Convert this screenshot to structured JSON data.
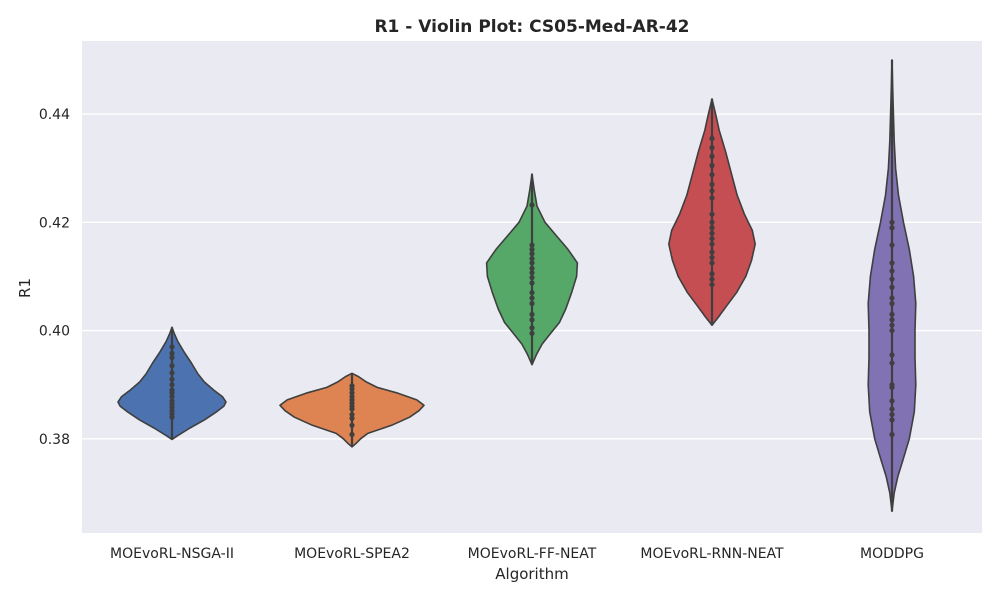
{
  "chart_data": {
    "type": "violin",
    "title": "R1 - Violin Plot: CS05-Med-AR-42",
    "xlabel": "Algorithm",
    "ylabel": "R1",
    "ylim": [
      0.3626,
      0.4535
    ],
    "yticks": [
      0.38,
      0.4,
      0.42,
      0.44
    ],
    "ytick_labels": [
      "0.38",
      "0.40",
      "0.42",
      "0.44"
    ],
    "grid": true,
    "background": "#EAEAF2",
    "categories": [
      "MOEvoRL-NSGA-II",
      "MOEvoRL-SPEA2",
      "MOEvoRL-FF-NEAT",
      "MOEvoRL-RNN-NEAT",
      "MODDPG"
    ],
    "series": [
      {
        "color": "#4C72B0",
        "extent": [
          0.3799,
          0.4006
        ],
        "shape": [
          [
            0.3799,
            0.0
          ],
          [
            0.3805,
            0.07
          ],
          [
            0.382,
            0.25
          ],
          [
            0.3835,
            0.45
          ],
          [
            0.385,
            0.62
          ],
          [
            0.386,
            0.72
          ],
          [
            0.3868,
            0.75
          ],
          [
            0.3878,
            0.7
          ],
          [
            0.389,
            0.58
          ],
          [
            0.3905,
            0.45
          ],
          [
            0.392,
            0.36
          ],
          [
            0.394,
            0.27
          ],
          [
            0.396,
            0.17
          ],
          [
            0.398,
            0.08
          ],
          [
            0.3995,
            0.03
          ],
          [
            0.4006,
            0.0
          ]
        ],
        "points": [
          0.397,
          0.3958,
          0.395,
          0.3935,
          0.3922,
          0.391,
          0.39,
          0.389,
          0.3885,
          0.3878,
          0.387,
          0.3864,
          0.3858,
          0.3852,
          0.3846,
          0.384
        ]
      },
      {
        "color": "#DD8452",
        "extent": [
          0.3785,
          0.3921
        ],
        "shape": [
          [
            0.3785,
            0.0
          ],
          [
            0.3792,
            0.06
          ],
          [
            0.38,
            0.12
          ],
          [
            0.381,
            0.22
          ],
          [
            0.3825,
            0.55
          ],
          [
            0.384,
            0.8
          ],
          [
            0.3852,
            0.93
          ],
          [
            0.3862,
            1.0
          ],
          [
            0.3872,
            0.9
          ],
          [
            0.3885,
            0.62
          ],
          [
            0.3895,
            0.35
          ],
          [
            0.3905,
            0.2
          ],
          [
            0.3915,
            0.09
          ],
          [
            0.3921,
            0.0
          ]
        ],
        "points": [
          0.3898,
          0.3892,
          0.3885,
          0.3878,
          0.3872,
          0.3866,
          0.386,
          0.3855,
          0.3845,
          0.3838,
          0.3825,
          0.3808
        ]
      },
      {
        "color": "#55A868",
        "extent": [
          0.3937,
          0.4289
        ],
        "shape": [
          [
            0.3937,
            0.0
          ],
          [
            0.3955,
            0.06
          ],
          [
            0.3975,
            0.14
          ],
          [
            0.3995,
            0.26
          ],
          [
            0.4015,
            0.38
          ],
          [
            0.404,
            0.47
          ],
          [
            0.407,
            0.55
          ],
          [
            0.41,
            0.62
          ],
          [
            0.4125,
            0.63
          ],
          [
            0.415,
            0.5
          ],
          [
            0.4175,
            0.34
          ],
          [
            0.42,
            0.18
          ],
          [
            0.423,
            0.07
          ],
          [
            0.426,
            0.03
          ],
          [
            0.4289,
            0.0
          ]
        ],
        "points": [
          0.4232,
          0.4158,
          0.415,
          0.4142,
          0.4133,
          0.4125,
          0.4115,
          0.4107,
          0.4098,
          0.4088,
          0.407,
          0.406,
          0.405,
          0.403,
          0.402,
          0.4005,
          0.3995
        ]
      },
      {
        "color": "#C44E52",
        "extent": [
          0.401,
          0.4428
        ],
        "shape": [
          [
            0.401,
            0.0
          ],
          [
            0.4025,
            0.09
          ],
          [
            0.4045,
            0.2
          ],
          [
            0.407,
            0.34
          ],
          [
            0.41,
            0.47
          ],
          [
            0.413,
            0.55
          ],
          [
            0.416,
            0.6
          ],
          [
            0.4185,
            0.56
          ],
          [
            0.4215,
            0.45
          ],
          [
            0.425,
            0.35
          ],
          [
            0.429,
            0.27
          ],
          [
            0.433,
            0.19
          ],
          [
            0.437,
            0.1
          ],
          [
            0.44,
            0.05
          ],
          [
            0.4428,
            0.0
          ]
        ],
        "points": [
          0.4355,
          0.4338,
          0.4322,
          0.4305,
          0.4288,
          0.427,
          0.4258,
          0.4245,
          0.4215,
          0.42,
          0.419,
          0.418,
          0.417,
          0.416,
          0.4145,
          0.4135,
          0.4125,
          0.4105,
          0.4095,
          0.4085
        ]
      },
      {
        "color": "#8172B3",
        "extent": [
          0.3666,
          0.45
        ],
        "shape": [
          [
            0.3666,
            0.0
          ],
          [
            0.37,
            0.03
          ],
          [
            0.373,
            0.08
          ],
          [
            0.376,
            0.15
          ],
          [
            0.38,
            0.24
          ],
          [
            0.385,
            0.31
          ],
          [
            0.39,
            0.33
          ],
          [
            0.395,
            0.32
          ],
          [
            0.4,
            0.32
          ],
          [
            0.405,
            0.33
          ],
          [
            0.41,
            0.3
          ],
          [
            0.415,
            0.24
          ],
          [
            0.42,
            0.16
          ],
          [
            0.425,
            0.09
          ],
          [
            0.43,
            0.05
          ],
          [
            0.435,
            0.03
          ],
          [
            0.442,
            0.015
          ],
          [
            0.45,
            0.0
          ]
        ],
        "points": [
          0.4363,
          0.42,
          0.419,
          0.4158,
          0.4125,
          0.411,
          0.4095,
          0.408,
          0.406,
          0.405,
          0.403,
          0.402,
          0.401,
          0.4,
          0.3955,
          0.394,
          0.39,
          0.3895,
          0.387,
          0.3855,
          0.3845,
          0.3835,
          0.3808
        ]
      }
    ]
  }
}
